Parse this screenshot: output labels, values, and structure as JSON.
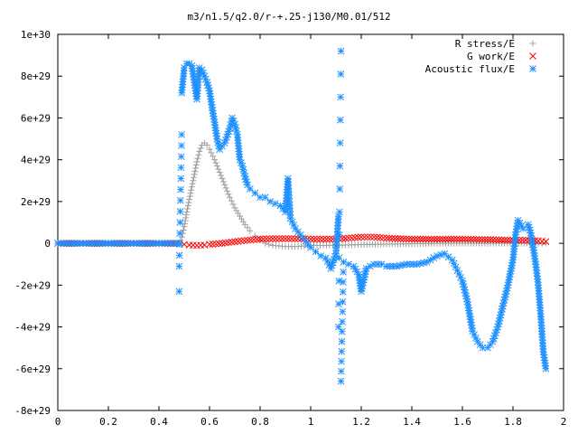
{
  "chart_data": {
    "type": "scatter",
    "title": "m3/n1.5/q2.0/r-+.25-j130/M0.01/512",
    "xlabel": "",
    "ylabel": "",
    "xlim": [
      0,
      2
    ],
    "ylim": [
      -8e+29,
      1e+30
    ],
    "x_ticks": [
      0,
      0.2,
      0.4,
      0.6,
      0.8,
      1,
      1.2,
      1.4,
      1.6,
      1.8,
      2
    ],
    "x_tick_labels": [
      "0",
      "0.2",
      "0.4",
      "0.6",
      "0.8",
      "1",
      "1.2",
      "1.4",
      "1.6",
      "1.8",
      "2"
    ],
    "y_ticks": [
      -8e+29,
      -6e+29,
      -4e+29,
      -2e+29,
      0,
      2e+29,
      4e+29,
      6e+29,
      8e+29,
      1e+30
    ],
    "y_tick_labels": [
      "-8e+29",
      "-6e+29",
      "-4e+29",
      "-2e+29",
      "0",
      "2e+29",
      "4e+29",
      "6e+29",
      "8e+29",
      "1e+30"
    ],
    "grid": false,
    "legend_position": "top-right",
    "series": [
      {
        "name": "R stress/E",
        "marker": "plus",
        "color": "#a0a0a0",
        "points": [
          [
            0,
            0
          ],
          [
            0.1,
            0
          ],
          [
            0.2,
            0
          ],
          [
            0.3,
            0
          ],
          [
            0.4,
            0
          ],
          [
            0.48,
            0
          ],
          [
            0.49,
            3e+28
          ],
          [
            0.5,
            8e+28
          ],
          [
            0.51,
            1.5e+29
          ],
          [
            0.52,
            2.1e+29
          ],
          [
            0.53,
            2.7e+29
          ],
          [
            0.54,
            3.3e+29
          ],
          [
            0.55,
            3.9e+29
          ],
          [
            0.56,
            4.4e+29
          ],
          [
            0.57,
            4.7e+29
          ],
          [
            0.58,
            4.8e+29
          ],
          [
            0.59,
            4.7e+29
          ],
          [
            0.6,
            4.5e+29
          ],
          [
            0.62,
            4e+29
          ],
          [
            0.64,
            3.4e+29
          ],
          [
            0.66,
            2.8e+29
          ],
          [
            0.68,
            2.2e+29
          ],
          [
            0.7,
            1.7e+29
          ],
          [
            0.72,
            1.3e+29
          ],
          [
            0.74,
            9e+28
          ],
          [
            0.76,
            6e+28
          ],
          [
            0.78,
            3.5e+28
          ],
          [
            0.8,
            1.5e+28
          ],
          [
            0.82,
            0
          ],
          [
            0.85,
            -1e+28
          ],
          [
            0.9,
            -1.5e+28
          ],
          [
            0.95,
            -1.5e+28
          ],
          [
            1.0,
            -1e+28
          ],
          [
            1.05,
            -1e+28
          ],
          [
            1.1,
            -1e+28
          ],
          [
            1.15,
            -8e+27
          ],
          [
            1.2,
            -6e+27
          ],
          [
            1.3,
            -4e+27
          ],
          [
            1.4,
            -2e+27
          ],
          [
            1.5,
            0
          ],
          [
            1.6,
            0
          ],
          [
            1.7,
            0
          ],
          [
            1.8,
            0
          ],
          [
            1.9,
            0
          ],
          [
            1.93,
            0
          ]
        ]
      },
      {
        "name": "G work/E",
        "marker": "cross",
        "color": "#ff0000",
        "points": [
          [
            0,
            0
          ],
          [
            0.1,
            0
          ],
          [
            0.2,
            0
          ],
          [
            0.3,
            0
          ],
          [
            0.4,
            0
          ],
          [
            0.48,
            0
          ],
          [
            0.5,
            -5e+27
          ],
          [
            0.52,
            -8e+27
          ],
          [
            0.55,
            -1e+28
          ],
          [
            0.58,
            -8e+27
          ],
          [
            0.6,
            -5e+27
          ],
          [
            0.65,
            0
          ],
          [
            0.7,
            8e+27
          ],
          [
            0.75,
            1.5e+28
          ],
          [
            0.8,
            2e+28
          ],
          [
            0.85,
            2.2e+28
          ],
          [
            0.9,
            2.2e+28
          ],
          [
            0.95,
            2.2e+28
          ],
          [
            1.0,
            2e+28
          ],
          [
            1.05,
            2e+28
          ],
          [
            1.1,
            2e+28
          ],
          [
            1.15,
            2.5e+28
          ],
          [
            1.2,
            3e+28
          ],
          [
            1.25,
            3e+28
          ],
          [
            1.3,
            2.5e+28
          ],
          [
            1.4,
            2e+28
          ],
          [
            1.5,
            2e+28
          ],
          [
            1.6,
            2e+28
          ],
          [
            1.7,
            1.8e+28
          ],
          [
            1.8,
            1.5e+28
          ],
          [
            1.85,
            1.5e+28
          ],
          [
            1.9,
            1.2e+28
          ],
          [
            1.93,
            8e+27
          ]
        ]
      },
      {
        "name": "Acoustic flux/E",
        "marker": "star",
        "color": "#1e90ff",
        "points": [
          [
            0,
            0
          ],
          [
            0.05,
            0
          ],
          [
            0.1,
            0
          ],
          [
            0.15,
            0
          ],
          [
            0.2,
            0
          ],
          [
            0.25,
            0
          ],
          [
            0.3,
            0
          ],
          [
            0.35,
            0
          ],
          [
            0.4,
            0
          ],
          [
            0.45,
            0
          ],
          [
            0.48,
            0
          ],
          [
            0.48,
            -2.3e+29
          ],
          [
            0.48,
            -1.1e+29
          ],
          [
            0.49,
            5.2e+29
          ],
          [
            0.49,
            7.2e+29
          ],
          [
            0.5,
            8.4e+29
          ],
          [
            0.51,
            8.6e+29
          ],
          [
            0.52,
            8.6e+29
          ],
          [
            0.53,
            8.5e+29
          ],
          [
            0.54,
            7.7e+29
          ],
          [
            0.55,
            6.9e+29
          ],
          [
            0.56,
            8.4e+29
          ],
          [
            0.57,
            8.3e+29
          ],
          [
            0.58,
            8e+29
          ],
          [
            0.59,
            7.7e+29
          ],
          [
            0.6,
            7.3e+29
          ],
          [
            0.61,
            6.5e+29
          ],
          [
            0.62,
            5.8e+29
          ],
          [
            0.63,
            5e+29
          ],
          [
            0.64,
            4.5e+29
          ],
          [
            0.66,
            4.8e+29
          ],
          [
            0.68,
            5.5e+29
          ],
          [
            0.69,
            6e+29
          ],
          [
            0.7,
            5.7e+29
          ],
          [
            0.71,
            5.2e+29
          ],
          [
            0.72,
            4e+29
          ],
          [
            0.73,
            3.7e+29
          ],
          [
            0.74,
            3.2e+29
          ],
          [
            0.75,
            2.8e+29
          ],
          [
            0.76,
            2.6e+29
          ],
          [
            0.78,
            2.4e+29
          ],
          [
            0.8,
            2.2e+29
          ],
          [
            0.82,
            2.2e+29
          ],
          [
            0.84,
            2e+29
          ],
          [
            0.86,
            1.9e+29
          ],
          [
            0.88,
            1.8e+29
          ],
          [
            0.9,
            1.5e+29
          ],
          [
            0.91,
            3.1e+29
          ],
          [
            0.92,
            1.2e+29
          ],
          [
            0.94,
            7e+28
          ],
          [
            0.96,
            4e+28
          ],
          [
            0.98,
            1e+28
          ],
          [
            1.0,
            -2e+28
          ],
          [
            1.02,
            -4e+28
          ],
          [
            1.04,
            -6e+28
          ],
          [
            1.06,
            -7e+28
          ],
          [
            1.08,
            -1.2e+29
          ],
          [
            1.1,
            -5e+28
          ],
          [
            1.11,
            1.3e+29
          ],
          [
            1.11,
            -4e+29
          ],
          [
            1.12,
            9.2e+29
          ],
          [
            1.12,
            -6.6e+29
          ],
          [
            1.13,
            -9e+28
          ],
          [
            1.15,
            -1e+29
          ],
          [
            1.17,
            -1.1e+29
          ],
          [
            1.19,
            -1.5e+29
          ],
          [
            1.2,
            -2.3e+29
          ],
          [
            1.22,
            -1.2e+29
          ],
          [
            1.25,
            -1e+29
          ],
          [
            1.28,
            -1e+29
          ],
          [
            1.3,
            -1.1e+29
          ],
          [
            1.34,
            -1.1e+29
          ],
          [
            1.38,
            -1e+29
          ],
          [
            1.42,
            -1e+29
          ],
          [
            1.46,
            -9e+28
          ],
          [
            1.5,
            -6e+28
          ],
          [
            1.53,
            -5e+28
          ],
          [
            1.56,
            -8e+28
          ],
          [
            1.58,
            -1.3e+29
          ],
          [
            1.6,
            -1.8e+29
          ],
          [
            1.62,
            -2.8e+29
          ],
          [
            1.63,
            -3.5e+29
          ],
          [
            1.64,
            -4.2e+29
          ],
          [
            1.66,
            -4.7e+29
          ],
          [
            1.68,
            -5e+29
          ],
          [
            1.7,
            -5e+29
          ],
          [
            1.72,
            -4.7e+29
          ],
          [
            1.74,
            -4e+29
          ],
          [
            1.76,
            -3e+29
          ],
          [
            1.78,
            -2e+29
          ],
          [
            1.8,
            -8e+28
          ],
          [
            1.81,
            4e+28
          ],
          [
            1.82,
            1.1e+29
          ],
          [
            1.84,
            7e+28
          ],
          [
            1.86,
            9e+28
          ],
          [
            1.87,
            5e+28
          ],
          [
            1.88,
            -2e+28
          ],
          [
            1.89,
            -1e+29
          ],
          [
            1.9,
            -2e+29
          ],
          [
            1.91,
            -3.5e+29
          ],
          [
            1.92,
            -5.2e+29
          ],
          [
            1.93,
            -6e+29
          ]
        ]
      }
    ]
  }
}
